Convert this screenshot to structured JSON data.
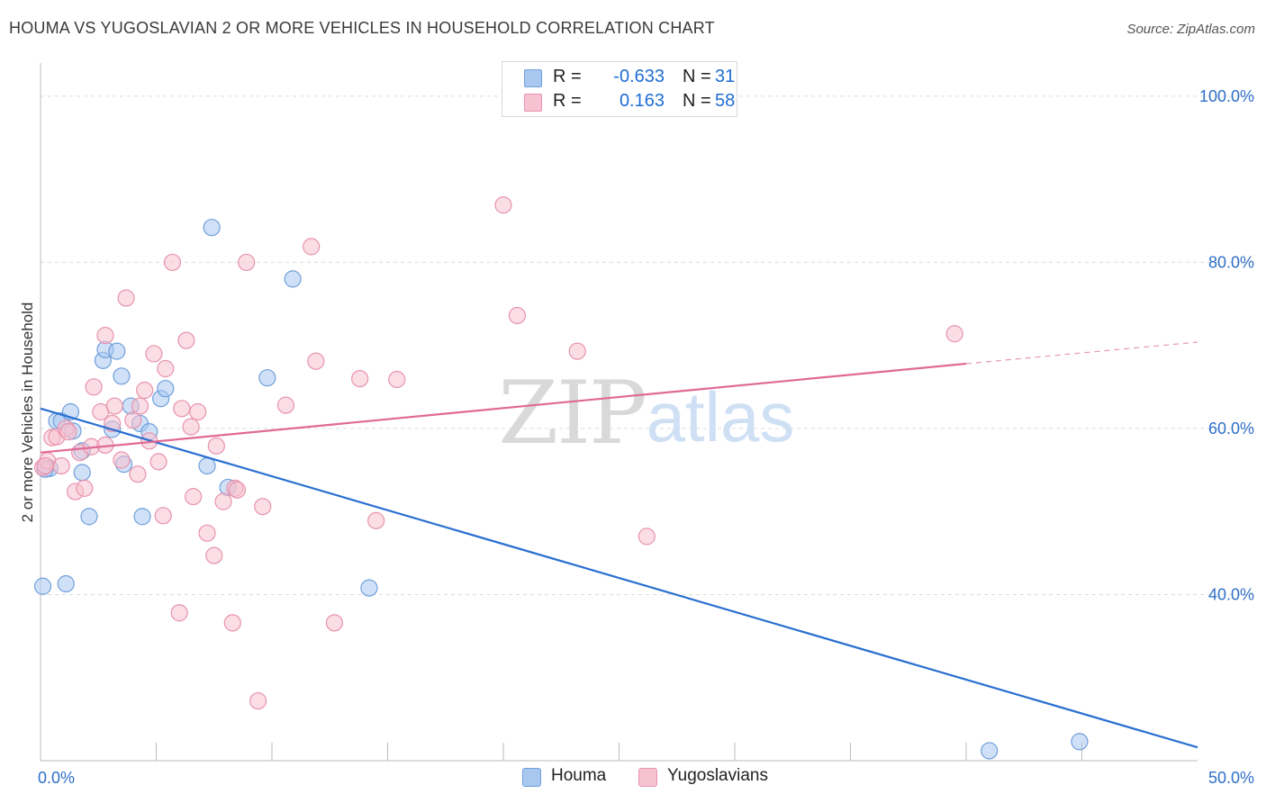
{
  "header": {
    "title": "HOUMA VS YUGOSLAVIAN 2 OR MORE VEHICLES IN HOUSEHOLD CORRELATION CHART",
    "source": "Source: ZipAtlas.com"
  },
  "legend_top": {
    "rows": [
      {
        "r_label": "R =",
        "r_value": "-0.633",
        "n_label": "N =",
        "n_value": "31"
      },
      {
        "r_label": "R =",
        "r_value": "0.163",
        "n_label": "N =",
        "n_value": "58"
      }
    ]
  },
  "legend_bottom": {
    "items": [
      {
        "label": "Houma"
      },
      {
        "label": "Yugoslavians"
      }
    ]
  },
  "colors": {
    "houma_fill": "#a9c8f0",
    "houma_stroke": "#6f9fdc",
    "houma_line": "#2a6fd1",
    "yugo_fill": "#f6c1d0",
    "yugo_stroke": "#e893ad",
    "yugo_line": "#e06a93",
    "axis_label": "#2f6fc9",
    "grid": "#dcdcdc"
  },
  "chart_data": {
    "type": "scatter",
    "xlabel": "",
    "ylabel": "2 or more Vehicles in Household",
    "xlim": [
      0,
      50
    ],
    "ylim": [
      20,
      104
    ],
    "x_tick_labels": [
      {
        "value": 0,
        "label": "0.0%"
      },
      {
        "value": 50,
        "label": "50.0%"
      }
    ],
    "y_tick_labels": [
      {
        "value": 100,
        "label": "100.0%"
      },
      {
        "value": 80,
        "label": "80.0%"
      },
      {
        "value": 60,
        "label": "60.0%"
      },
      {
        "value": 40,
        "label": "40.0%"
      }
    ],
    "x_minor_ticks": [
      5,
      10,
      15,
      20,
      25,
      30,
      35,
      40,
      45
    ],
    "grid_y": [
      100,
      80,
      60,
      40
    ],
    "watermark": {
      "zip": "ZIP",
      "atlas": "atlas"
    },
    "series": [
      {
        "name": "Houma",
        "r": -0.633,
        "n": 31,
        "trend": {
          "x0": 0,
          "y0": 62.4,
          "x1": 50,
          "y1": 21.6
        },
        "points": [
          [
            0.1,
            41.0
          ],
          [
            0.4,
            55.2
          ],
          [
            0.7,
            60.9
          ],
          [
            0.9,
            60.9
          ],
          [
            1.1,
            41.3
          ],
          [
            1.3,
            62.0
          ],
          [
            1.4,
            59.7
          ],
          [
            1.8,
            54.7
          ],
          [
            1.8,
            57.3
          ],
          [
            2.1,
            49.4
          ],
          [
            2.7,
            68.2
          ],
          [
            2.8,
            69.5
          ],
          [
            3.1,
            59.9
          ],
          [
            3.3,
            69.3
          ],
          [
            3.5,
            66.3
          ],
          [
            3.6,
            55.7
          ],
          [
            3.9,
            62.7
          ],
          [
            4.3,
            60.6
          ],
          [
            4.4,
            49.4
          ],
          [
            4.7,
            59.6
          ],
          [
            5.2,
            63.6
          ],
          [
            5.4,
            64.8
          ],
          [
            7.2,
            55.5
          ],
          [
            7.4,
            84.2
          ],
          [
            8.1,
            52.9
          ],
          [
            9.8,
            66.1
          ],
          [
            10.9,
            78.0
          ],
          [
            14.2,
            40.8
          ],
          [
            41.0,
            21.2
          ],
          [
            44.9,
            22.3
          ],
          [
            0.2,
            55.1
          ]
        ]
      },
      {
        "name": "Yugoslavians",
        "r": 0.163,
        "n": 58,
        "trend": {
          "x0": 0,
          "y0": 57.1,
          "x1": 40,
          "y1": 67.8
        },
        "trend_extension": {
          "x0": 40,
          "y0": 67.8,
          "x1": 50,
          "y1": 70.4
        },
        "points": [
          [
            0.1,
            55.3
          ],
          [
            0.3,
            56.1
          ],
          [
            0.5,
            58.9
          ],
          [
            0.7,
            59.0
          ],
          [
            0.9,
            55.5
          ],
          [
            1.1,
            60.0
          ],
          [
            1.2,
            59.6
          ],
          [
            1.5,
            52.4
          ],
          [
            1.7,
            57.1
          ],
          [
            1.9,
            52.8
          ],
          [
            2.2,
            57.8
          ],
          [
            2.3,
            65.0
          ],
          [
            2.6,
            62.0
          ],
          [
            2.8,
            58.0
          ],
          [
            2.8,
            71.2
          ],
          [
            3.1,
            60.6
          ],
          [
            3.2,
            62.7
          ],
          [
            3.5,
            56.2
          ],
          [
            3.7,
            75.7
          ],
          [
            4.0,
            61.0
          ],
          [
            4.2,
            54.5
          ],
          [
            4.3,
            62.7
          ],
          [
            4.5,
            64.6
          ],
          [
            4.7,
            58.5
          ],
          [
            4.9,
            69.0
          ],
          [
            5.1,
            56.0
          ],
          [
            5.3,
            49.5
          ],
          [
            5.4,
            67.2
          ],
          [
            5.7,
            80.0
          ],
          [
            6.0,
            37.8
          ],
          [
            6.1,
            62.4
          ],
          [
            6.3,
            70.6
          ],
          [
            6.5,
            60.2
          ],
          [
            6.6,
            51.8
          ],
          [
            6.8,
            62.0
          ],
          [
            7.2,
            47.4
          ],
          [
            7.5,
            44.7
          ],
          [
            7.6,
            57.9
          ],
          [
            7.9,
            51.2
          ],
          [
            8.3,
            36.6
          ],
          [
            8.4,
            52.8
          ],
          [
            8.5,
            52.6
          ],
          [
            8.9,
            80.0
          ],
          [
            9.4,
            27.2
          ],
          [
            9.6,
            50.6
          ],
          [
            10.6,
            62.8
          ],
          [
            11.7,
            81.9
          ],
          [
            11.9,
            68.1
          ],
          [
            12.7,
            36.6
          ],
          [
            13.8,
            66.0
          ],
          [
            14.5,
            48.9
          ],
          [
            15.4,
            65.9
          ],
          [
            20.0,
            86.9
          ],
          [
            20.6,
            73.6
          ],
          [
            23.2,
            69.3
          ],
          [
            26.2,
            47.0
          ],
          [
            39.5,
            71.4
          ],
          [
            0.2,
            55.5
          ]
        ]
      }
    ]
  }
}
